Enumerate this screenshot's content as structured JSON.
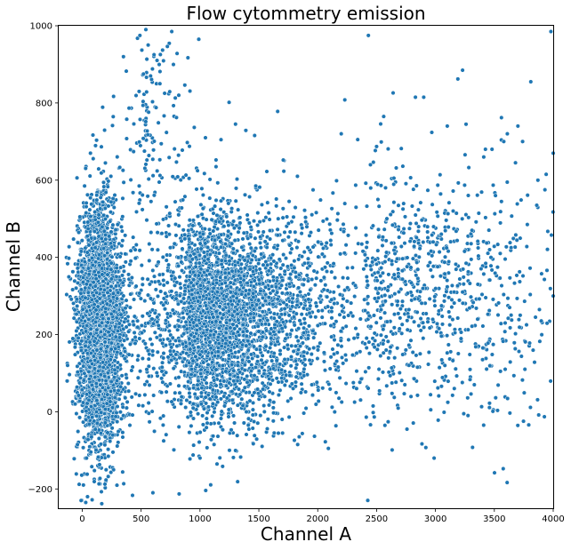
{
  "chart_data": {
    "type": "scatter",
    "title": "Flow cytommetry emission",
    "xlabel": "Channel A",
    "ylabel": "Channel B",
    "xlim": [
      -200,
      4000
    ],
    "ylim": [
      -250,
      1000
    ],
    "xticks": [
      0,
      500,
      1000,
      1500,
      2000,
      2500,
      3000,
      3500,
      4000
    ],
    "yticks": [
      -200,
      0,
      200,
      400,
      600,
      800,
      1000
    ],
    "grid": false,
    "legend": "none",
    "marker_color": "#1f77b4",
    "marker_edge_color": "#ffffff",
    "clusters": [
      {
        "x_center": 150,
        "x_spread": 90,
        "y_center": 220,
        "y_spread": 150,
        "count": 3600
      },
      {
        "x_center": 900,
        "x_spread": 550,
        "y_center": 250,
        "y_spread": 140,
        "count": 3300
      },
      {
        "x_center": 2400,
        "x_spread": 850,
        "y_center": 300,
        "y_spread": 160,
        "count": 950
      },
      {
        "x_center": 500,
        "x_spread": 200,
        "y_center": 720,
        "y_spread": 120,
        "count": 120
      }
    ],
    "points": [
      [
        540,
        990
      ],
      [
        760,
        985
      ],
      [
        990,
        965
      ],
      [
        2430,
        975
      ],
      [
        3980,
        985
      ],
      [
        490,
        975
      ],
      [
        560,
        950
      ],
      [
        610,
        925
      ],
      [
        580,
        870
      ],
      [
        520,
        875
      ],
      [
        630,
        850
      ],
      [
        660,
        850
      ],
      [
        700,
        825
      ],
      [
        820,
        820
      ],
      [
        350,
        920
      ],
      [
        3230,
        885
      ],
      [
        3190,
        862
      ],
      [
        3810,
        855
      ],
      [
        2830,
        815
      ],
      [
        2230,
        808
      ],
      [
        2640,
        826
      ],
      [
        1660,
        778
      ],
      [
        3560,
        762
      ],
      [
        3610,
        720
      ],
      [
        3700,
        740
      ],
      [
        3740,
        700
      ],
      [
        3870,
        600
      ],
      [
        3940,
        615
      ],
      [
        4000,
        670
      ],
      [
        4000,
        300
      ],
      [
        3400,
        135
      ],
      [
        3550,
        410
      ],
      [
        3630,
        270
      ],
      [
        3760,
        110
      ],
      [
        3800,
        178
      ],
      [
        3850,
        245
      ],
      [
        3720,
        250
      ],
      [
        3580,
        700
      ],
      [
        3680,
        645
      ],
      [
        3240,
        -5
      ],
      [
        3330,
        70
      ],
      [
        3160,
        60
      ],
      [
        2960,
        5
      ],
      [
        2470,
        15
      ],
      [
        2090,
        -95
      ],
      [
        1630,
        -55
      ],
      [
        1830,
        -85
      ],
      [
        1250,
        -100
      ],
      [
        1120,
        -85
      ],
      [
        1000,
        -120
      ],
      [
        600,
        -210
      ],
      [
        30,
        -235
      ],
      [
        45,
        -220
      ],
      [
        10,
        -190
      ],
      [
        -10,
        -230
      ],
      [
        -60,
        20
      ],
      [
        -20,
        505
      ],
      [
        70,
        670
      ],
      [
        20,
        585
      ],
      [
        2200,
        720
      ],
      [
        2340,
        705
      ],
      [
        2560,
        765
      ],
      [
        2900,
        815
      ],
      [
        3100,
        740
      ],
      [
        3260,
        745
      ],
      [
        3410,
        660
      ],
      [
        3480,
        680
      ],
      [
        3930,
        575
      ],
      [
        3860,
        535
      ],
      [
        3780,
        485
      ],
      [
        3150,
        520
      ],
      [
        3050,
        460
      ],
      [
        2980,
        440
      ],
      [
        3310,
        470
      ],
      [
        3460,
        420
      ],
      [
        3510,
        560
      ],
      [
        3360,
        330
      ],
      [
        3230,
        310
      ],
      [
        3080,
        120
      ],
      [
        2870,
        150
      ],
      [
        2740,
        70
      ],
      [
        2520,
        110
      ],
      [
        2330,
        60
      ],
      [
        2180,
        35
      ],
      [
        1950,
        70
      ]
    ]
  }
}
